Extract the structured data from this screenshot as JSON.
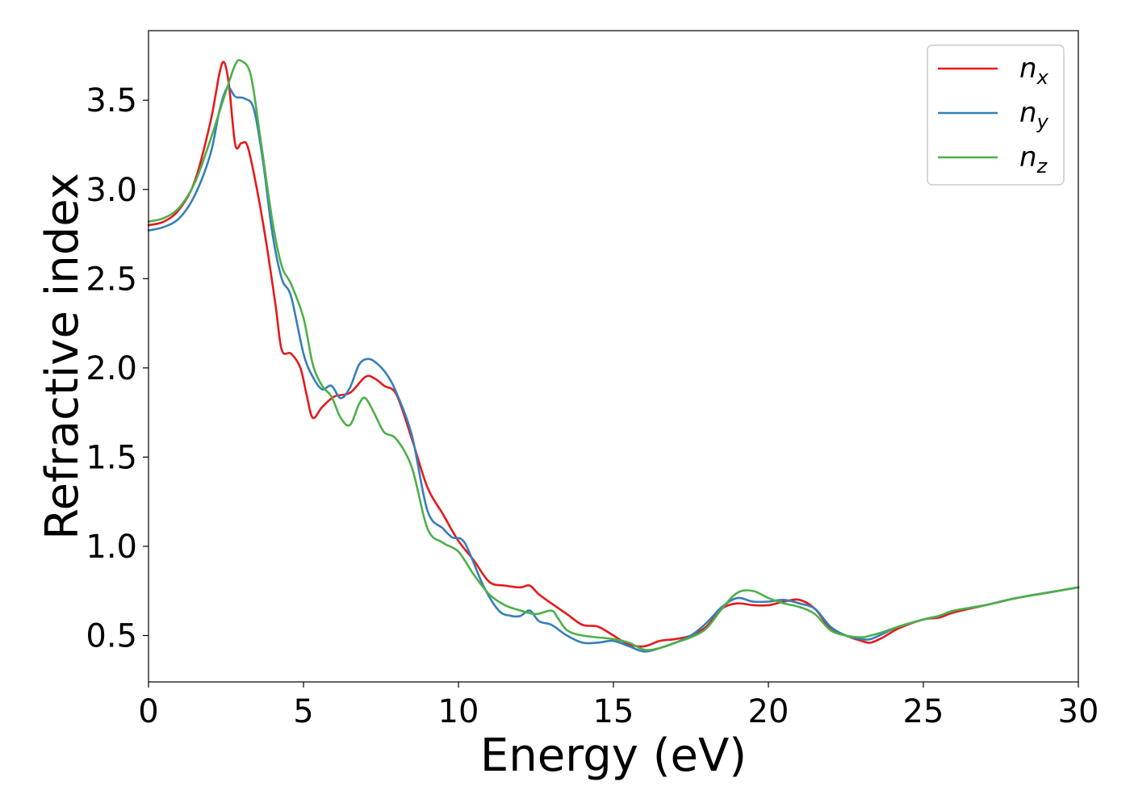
{
  "chart_data": {
    "type": "line",
    "title": "",
    "xlabel": "Energy (eV)",
    "ylabel": "Refractive index",
    "xlim": [
      0,
      30
    ],
    "ylim": [
      0.24,
      3.89
    ],
    "xticks": [
      0,
      5,
      10,
      15,
      20,
      25,
      30
    ],
    "xtick_labels": [
      "0",
      "5",
      "10",
      "15",
      "20",
      "25",
      "30"
    ],
    "yticks": [
      0.5,
      1.0,
      1.5,
      2.0,
      2.5,
      3.0,
      3.5
    ],
    "ytick_labels": [
      "0.5",
      "1.0",
      "1.5",
      "2.0",
      "2.5",
      "3.0",
      "3.5"
    ],
    "grid": false,
    "legend_position": "top-right",
    "series": [
      {
        "name": "n_x",
        "label_base": "n",
        "label_sub": "x",
        "color": "#e41a1c",
        "points": [
          [
            0,
            2.8
          ],
          [
            0.5,
            2.82
          ],
          [
            1,
            2.89
          ],
          [
            1.5,
            3.05
          ],
          [
            2,
            3.38
          ],
          [
            2.3,
            3.66
          ],
          [
            2.45,
            3.71
          ],
          [
            2.6,
            3.58
          ],
          [
            2.8,
            3.25
          ],
          [
            3.0,
            3.26
          ],
          [
            3.2,
            3.24
          ],
          [
            3.5,
            3.0
          ],
          [
            3.8,
            2.7
          ],
          [
            4.1,
            2.35
          ],
          [
            4.3,
            2.1
          ],
          [
            4.6,
            2.08
          ],
          [
            4.9,
            2.0
          ],
          [
            5.1,
            1.85
          ],
          [
            5.3,
            1.72
          ],
          [
            5.6,
            1.78
          ],
          [
            6.0,
            1.84
          ],
          [
            6.5,
            1.86
          ],
          [
            7.0,
            1.95
          ],
          [
            7.3,
            1.94
          ],
          [
            7.6,
            1.9
          ],
          [
            8.0,
            1.85
          ],
          [
            8.5,
            1.6
          ],
          [
            9.0,
            1.33
          ],
          [
            9.5,
            1.18
          ],
          [
            10.0,
            1.03
          ],
          [
            10.5,
            0.92
          ],
          [
            11.0,
            0.8
          ],
          [
            11.5,
            0.78
          ],
          [
            12.0,
            0.77
          ],
          [
            12.3,
            0.78
          ],
          [
            12.6,
            0.73
          ],
          [
            13.0,
            0.68
          ],
          [
            13.5,
            0.62
          ],
          [
            14.0,
            0.56
          ],
          [
            14.5,
            0.55
          ],
          [
            15.0,
            0.5
          ],
          [
            15.5,
            0.45
          ],
          [
            16.0,
            0.44
          ],
          [
            16.5,
            0.47
          ],
          [
            17.0,
            0.48
          ],
          [
            17.5,
            0.5
          ],
          [
            18.0,
            0.55
          ],
          [
            18.5,
            0.65
          ],
          [
            19.0,
            0.68
          ],
          [
            19.5,
            0.67
          ],
          [
            20.0,
            0.67
          ],
          [
            20.5,
            0.69
          ],
          [
            21.0,
            0.7
          ],
          [
            21.5,
            0.65
          ],
          [
            22.0,
            0.54
          ],
          [
            22.5,
            0.5
          ],
          [
            23.0,
            0.47
          ],
          [
            23.3,
            0.46
          ],
          [
            23.7,
            0.49
          ],
          [
            24.2,
            0.54
          ],
          [
            25.0,
            0.59
          ],
          [
            25.5,
            0.6
          ],
          [
            26.0,
            0.63
          ],
          [
            27.0,
            0.67
          ],
          [
            28.0,
            0.71
          ],
          [
            29.0,
            0.74
          ],
          [
            30.0,
            0.77
          ]
        ]
      },
      {
        "name": "n_y",
        "label_base": "n",
        "label_sub": "y",
        "color": "#377eb8",
        "points": [
          [
            0,
            2.77
          ],
          [
            0.5,
            2.79
          ],
          [
            1,
            2.84
          ],
          [
            1.5,
            2.97
          ],
          [
            2,
            3.2
          ],
          [
            2.3,
            3.45
          ],
          [
            2.55,
            3.57
          ],
          [
            2.8,
            3.52
          ],
          [
            3.1,
            3.51
          ],
          [
            3.4,
            3.45
          ],
          [
            3.7,
            3.15
          ],
          [
            4.0,
            2.75
          ],
          [
            4.3,
            2.5
          ],
          [
            4.6,
            2.4
          ],
          [
            5.0,
            2.08
          ],
          [
            5.3,
            1.95
          ],
          [
            5.6,
            1.88
          ],
          [
            5.9,
            1.9
          ],
          [
            6.2,
            1.83
          ],
          [
            6.5,
            1.89
          ],
          [
            6.8,
            2.02
          ],
          [
            7.1,
            2.05
          ],
          [
            7.4,
            2.02
          ],
          [
            7.7,
            1.96
          ],
          [
            8.0,
            1.86
          ],
          [
            8.5,
            1.62
          ],
          [
            9.0,
            1.2
          ],
          [
            9.5,
            1.1
          ],
          [
            9.8,
            1.05
          ],
          [
            10.2,
            1.02
          ],
          [
            10.8,
            0.78
          ],
          [
            11.3,
            0.64
          ],
          [
            11.7,
            0.61
          ],
          [
            12.0,
            0.61
          ],
          [
            12.3,
            0.64
          ],
          [
            12.6,
            0.58
          ],
          [
            13.0,
            0.56
          ],
          [
            13.5,
            0.5
          ],
          [
            14.0,
            0.46
          ],
          [
            14.5,
            0.46
          ],
          [
            15.0,
            0.47
          ],
          [
            15.5,
            0.44
          ],
          [
            16.0,
            0.41
          ],
          [
            16.5,
            0.43
          ],
          [
            17.0,
            0.46
          ],
          [
            17.5,
            0.5
          ],
          [
            18.0,
            0.57
          ],
          [
            18.5,
            0.66
          ],
          [
            19.0,
            0.71
          ],
          [
            19.5,
            0.69
          ],
          [
            20.0,
            0.69
          ],
          [
            20.5,
            0.7
          ],
          [
            21.0,
            0.68
          ],
          [
            21.5,
            0.65
          ],
          [
            22.0,
            0.55
          ],
          [
            22.5,
            0.5
          ],
          [
            23.0,
            0.48
          ],
          [
            23.3,
            0.48
          ],
          [
            23.7,
            0.51
          ],
          [
            24.2,
            0.55
          ],
          [
            25.0,
            0.59
          ],
          [
            25.5,
            0.61
          ],
          [
            26.0,
            0.64
          ],
          [
            27.0,
            0.67
          ],
          [
            28.0,
            0.71
          ],
          [
            29.0,
            0.74
          ],
          [
            30.0,
            0.77
          ]
        ]
      },
      {
        "name": "n_z",
        "label_base": "n",
        "label_sub": "z",
        "color": "#4daf4a",
        "points": [
          [
            0,
            2.82
          ],
          [
            0.5,
            2.84
          ],
          [
            1,
            2.9
          ],
          [
            1.5,
            3.04
          ],
          [
            2,
            3.28
          ],
          [
            2.5,
            3.55
          ],
          [
            2.8,
            3.7
          ],
          [
            3.0,
            3.72
          ],
          [
            3.3,
            3.64
          ],
          [
            3.6,
            3.3
          ],
          [
            4.0,
            2.82
          ],
          [
            4.3,
            2.57
          ],
          [
            4.6,
            2.47
          ],
          [
            5.0,
            2.28
          ],
          [
            5.3,
            2.02
          ],
          [
            5.6,
            1.9
          ],
          [
            5.9,
            1.84
          ],
          [
            6.2,
            1.72
          ],
          [
            6.5,
            1.68
          ],
          [
            6.8,
            1.8
          ],
          [
            7.0,
            1.83
          ],
          [
            7.3,
            1.74
          ],
          [
            7.6,
            1.64
          ],
          [
            8.0,
            1.6
          ],
          [
            8.5,
            1.44
          ],
          [
            9.0,
            1.1
          ],
          [
            9.5,
            1.02
          ],
          [
            10.0,
            0.97
          ],
          [
            10.5,
            0.84
          ],
          [
            11.0,
            0.73
          ],
          [
            11.5,
            0.67
          ],
          [
            12.0,
            0.64
          ],
          [
            12.5,
            0.62
          ],
          [
            13.0,
            0.64
          ],
          [
            13.2,
            0.6
          ],
          [
            13.5,
            0.53
          ],
          [
            14.0,
            0.5
          ],
          [
            15.0,
            0.48
          ],
          [
            15.5,
            0.46
          ],
          [
            16.0,
            0.42
          ],
          [
            16.5,
            0.43
          ],
          [
            17.0,
            0.46
          ],
          [
            17.5,
            0.49
          ],
          [
            18.0,
            0.54
          ],
          [
            18.5,
            0.65
          ],
          [
            19.0,
            0.74
          ],
          [
            19.5,
            0.75
          ],
          [
            20.0,
            0.71
          ],
          [
            20.5,
            0.68
          ],
          [
            21.0,
            0.66
          ],
          [
            21.5,
            0.62
          ],
          [
            22.0,
            0.53
          ],
          [
            22.5,
            0.5
          ],
          [
            23.0,
            0.49
          ],
          [
            23.3,
            0.5
          ],
          [
            23.7,
            0.52
          ],
          [
            24.2,
            0.55
          ],
          [
            25.0,
            0.59
          ],
          [
            25.5,
            0.61
          ],
          [
            26.0,
            0.64
          ],
          [
            27.0,
            0.67
          ],
          [
            28.0,
            0.71
          ],
          [
            29.0,
            0.74
          ],
          [
            30.0,
            0.77
          ]
        ]
      }
    ]
  }
}
